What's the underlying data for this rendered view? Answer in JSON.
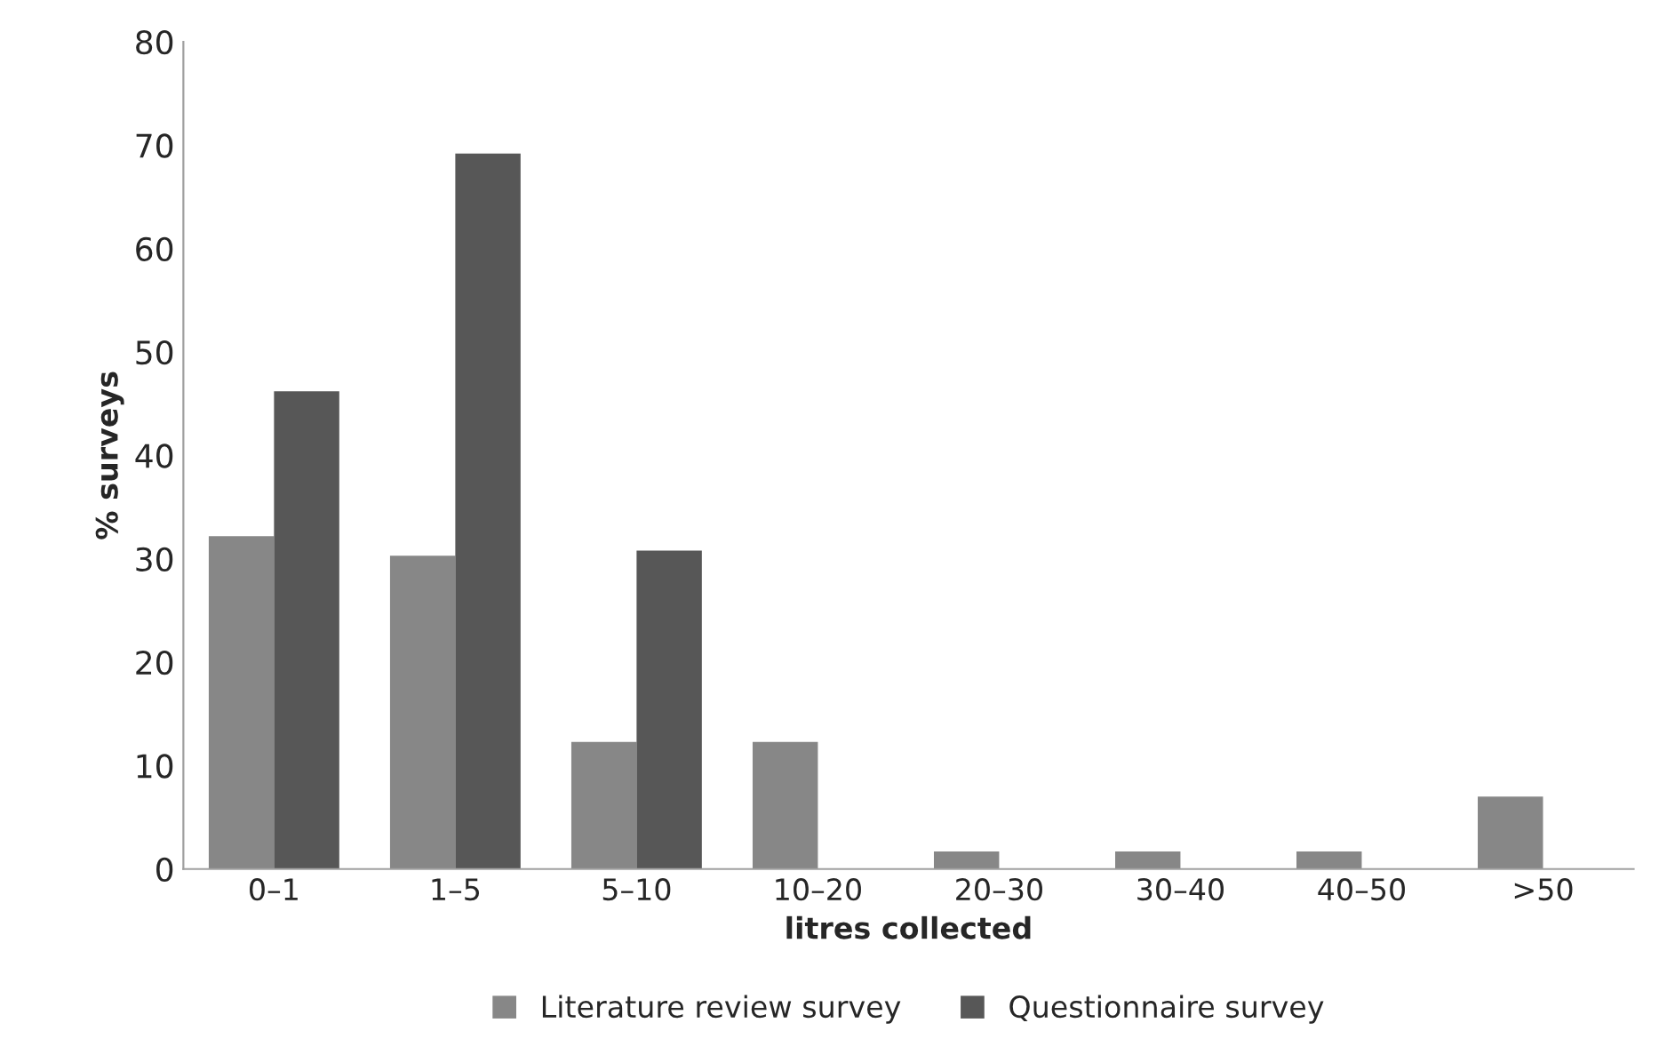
{
  "chart_data": {
    "type": "bar",
    "xlabel": "litres collected",
    "ylabel": "% surveys",
    "categories": [
      "0–1",
      "1–5",
      "5–10",
      "10–20",
      "20–30",
      "30–40",
      "40–50",
      ">50"
    ],
    "series": [
      {
        "name": "Literature review survey",
        "color": "#878787",
        "values": [
          32.2,
          30.3,
          12.3,
          12.3,
          1.7,
          1.7,
          1.7,
          7.0
        ]
      },
      {
        "name": "Questionnaire survey",
        "color": "#575757",
        "values": [
          46.2,
          69.2,
          30.8,
          null,
          null,
          null,
          null,
          null
        ]
      }
    ],
    "ylim": [
      0,
      80
    ],
    "yticks": [
      0,
      10,
      20,
      30,
      40,
      50,
      60,
      70,
      80
    ],
    "grid": false,
    "legend": "bottom"
  }
}
